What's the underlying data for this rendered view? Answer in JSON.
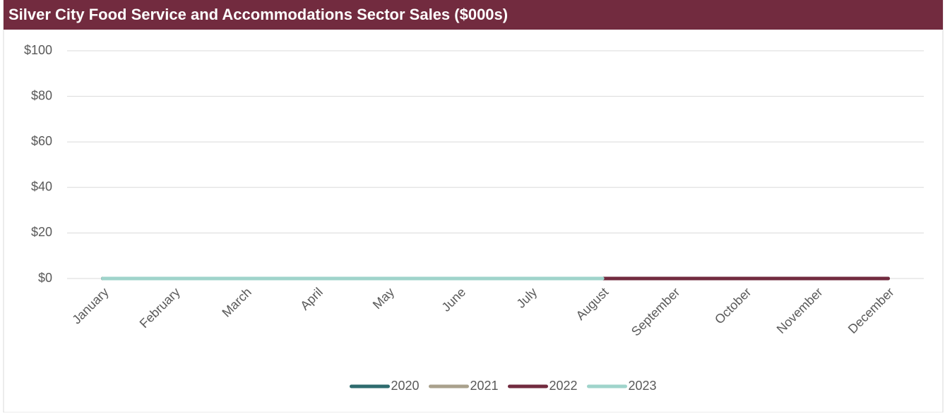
{
  "chart_data": {
    "type": "line",
    "title": "Silver City Food Service and Accommodations Sector Sales ($000s)",
    "categories": [
      "January",
      "February",
      "March",
      "April",
      "May",
      "June",
      "July",
      "August",
      "September",
      "October",
      "November",
      "December"
    ],
    "series": [
      {
        "name": "2020",
        "color": "#2E6B6E",
        "values": [
          0,
          0,
          0,
          0,
          0,
          0,
          0,
          0,
          0,
          0,
          0,
          0
        ]
      },
      {
        "name": "2021",
        "color": "#A9A18C",
        "values": [
          0,
          0,
          0,
          0,
          0,
          0,
          0,
          0,
          0,
          0,
          0,
          0
        ]
      },
      {
        "name": "2022",
        "color": "#722B3F",
        "values": [
          0,
          0,
          0,
          0,
          0,
          0,
          0,
          0,
          0,
          0,
          0,
          0
        ]
      },
      {
        "name": "2023",
        "color": "#9FD4CB",
        "values": [
          0,
          0,
          0,
          0,
          0,
          0,
          0,
          0,
          null,
          null,
          null,
          null
        ]
      }
    ],
    "ylim": [
      0,
      100
    ],
    "yticks": [
      {
        "value": 0,
        "label": "$0"
      },
      {
        "value": 20,
        "label": "$20"
      },
      {
        "value": 40,
        "label": "$40"
      },
      {
        "value": 60,
        "label": "$60"
      },
      {
        "value": 80,
        "label": "$80"
      },
      {
        "value": 100,
        "label": "$100"
      }
    ],
    "grid": true,
    "legend": "bottom"
  }
}
